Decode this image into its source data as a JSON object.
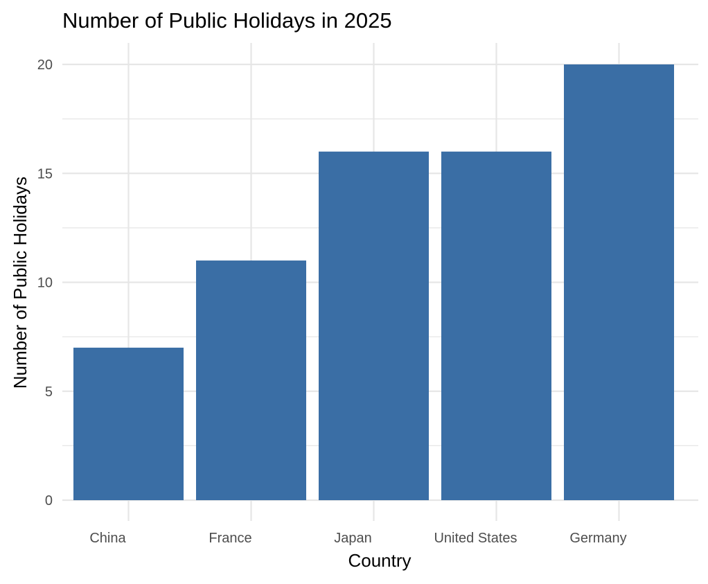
{
  "chart_data": {
    "type": "bar",
    "title": "Number of Public Holidays in 2025",
    "xlabel": "Country",
    "ylabel": "Number of Public Holidays",
    "categories": [
      "China",
      "France",
      "Japan",
      "United States",
      "Germany"
    ],
    "values": [
      7,
      11,
      16,
      16,
      20
    ],
    "ylim": [
      0,
      20
    ],
    "yticks": [
      "0",
      "5",
      "10",
      "15",
      "20"
    ],
    "grid": true,
    "legend": "none",
    "colors": {
      "bar": "#3A6EA5",
      "grid": "#E6E6E6",
      "tick_label": "#4D4D4D",
      "text": "#000000"
    }
  }
}
